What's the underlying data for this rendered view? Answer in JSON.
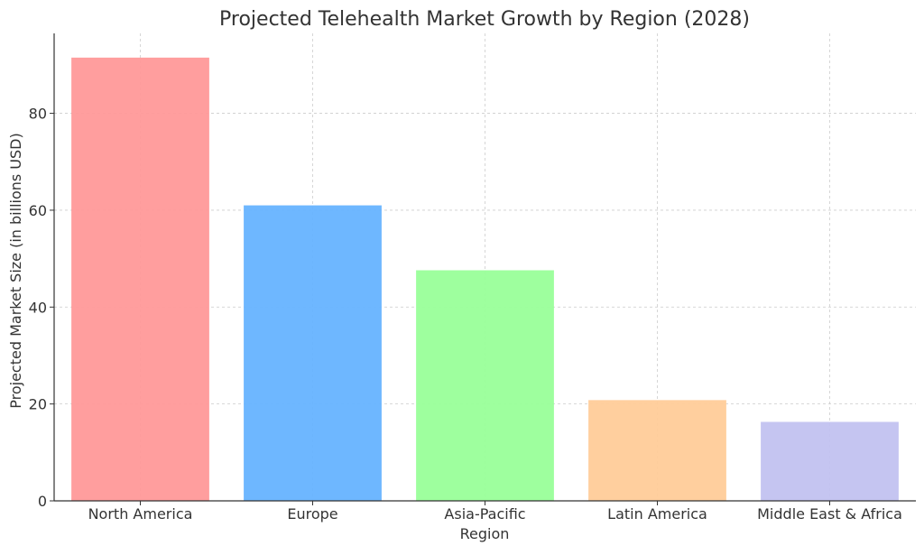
{
  "chart_data": {
    "type": "bar",
    "title": "Projected Telehealth Market Growth by Region (2028)",
    "xlabel": "Region",
    "ylabel": "Projected Market Size (in billions USD)",
    "categories": [
      "North America",
      "Europe",
      "Asia-Pacific",
      "Latin America",
      "Middle East & Africa"
    ],
    "values": [
      91.5,
      61.0,
      47.6,
      20.8,
      16.3
    ],
    "colors": [
      "#ff9999",
      "#66b3ff",
      "#99ff99",
      "#ffcc99",
      "#c2c2f0"
    ],
    "ylim": [
      0,
      96.5
    ],
    "yticks": [
      0,
      20,
      40,
      60,
      80
    ],
    "grid": true
  }
}
